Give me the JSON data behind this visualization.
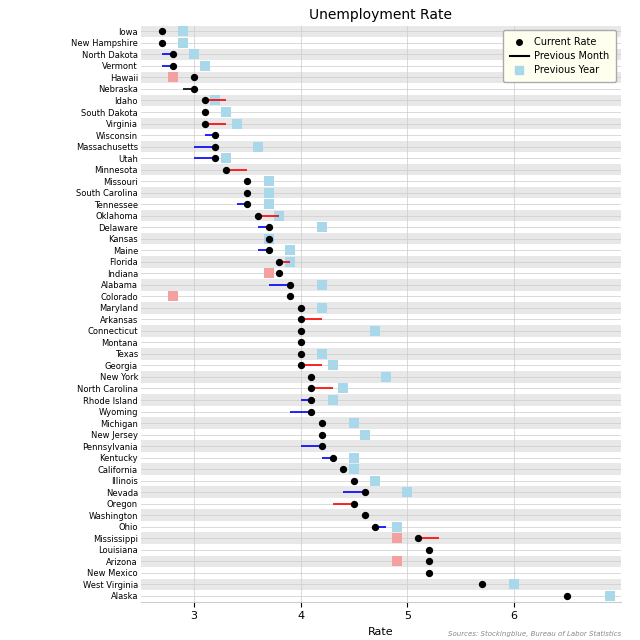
{
  "title": "Unemployment Rate",
  "xlabel": "Rate",
  "source": "Sources: Stockingblue, Bureau of Labor Statistics",
  "states": [
    "Iowa",
    "New Hampshire",
    "North Dakota",
    "Vermont",
    "Hawaii",
    "Nebraska",
    "Idaho",
    "South Dakota",
    "Virginia",
    "Wisconsin",
    "Massachusetts",
    "Utah",
    "Minnesota",
    "Missouri",
    "South Carolina",
    "Tennessee",
    "Oklahoma",
    "Delaware",
    "Kansas",
    "Maine",
    "Florida",
    "Indiana",
    "Alabama",
    "Colorado",
    "Maryland",
    "Arkansas",
    "Connecticut",
    "Montana",
    "Texas",
    "Georgia",
    "New York",
    "North Carolina",
    "Rhode Island",
    "Wyoming",
    "Michigan",
    "New Jersey",
    "Pennsylvania",
    "Kentucky",
    "California",
    "Illinois",
    "Nevada",
    "Oregon",
    "Washington",
    "Ohio",
    "Mississippi",
    "Louisiana",
    "Arizona",
    "New Mexico",
    "West Virginia",
    "Alaska"
  ],
  "current": [
    2.7,
    2.7,
    2.8,
    2.8,
    3.0,
    3.0,
    3.1,
    3.1,
    3.1,
    3.2,
    3.2,
    3.2,
    3.3,
    3.5,
    3.5,
    3.5,
    3.6,
    3.7,
    3.7,
    3.7,
    3.8,
    3.8,
    3.9,
    3.9,
    4.0,
    4.0,
    4.0,
    4.0,
    4.0,
    4.0,
    4.1,
    4.1,
    4.1,
    4.1,
    4.2,
    4.2,
    4.2,
    4.3,
    4.4,
    4.5,
    4.6,
    4.5,
    4.6,
    4.7,
    5.1,
    5.2,
    5.2,
    5.2,
    5.7,
    6.5
  ],
  "previous_month": [
    null,
    null,
    2.7,
    2.7,
    null,
    2.9,
    3.3,
    null,
    3.3,
    3.1,
    3.0,
    3.0,
    3.5,
    null,
    null,
    3.4,
    3.8,
    3.6,
    null,
    3.6,
    3.9,
    null,
    3.7,
    null,
    null,
    4.2,
    null,
    null,
    null,
    4.2,
    null,
    4.3,
    4.0,
    3.9,
    null,
    null,
    4.0,
    4.2,
    null,
    null,
    4.4,
    4.3,
    null,
    4.8,
    5.3,
    null,
    null,
    null,
    null,
    null
  ],
  "previous_month_color": [
    null,
    null,
    "blue",
    "blue",
    null,
    null,
    "red",
    null,
    "red",
    "blue",
    "blue",
    "blue",
    "red",
    null,
    null,
    "blue",
    "red",
    "blue",
    null,
    "blue",
    "red",
    null,
    "blue",
    null,
    null,
    "red",
    null,
    null,
    null,
    "red",
    null,
    "red",
    "blue",
    "blue",
    null,
    null,
    "blue",
    "blue",
    null,
    null,
    "blue",
    "red",
    null,
    "blue",
    "red",
    null,
    null,
    null,
    null,
    null
  ],
  "previous_year": [
    2.9,
    2.9,
    3.0,
    3.1,
    2.8,
    null,
    3.2,
    3.3,
    3.4,
    null,
    3.6,
    3.3,
    null,
    3.7,
    3.7,
    3.7,
    3.8,
    4.2,
    3.7,
    3.9,
    3.9,
    3.7,
    4.2,
    2.8,
    4.2,
    null,
    4.7,
    null,
    4.2,
    4.3,
    4.8,
    4.4,
    4.3,
    null,
    4.5,
    4.6,
    null,
    4.5,
    4.5,
    4.7,
    5.0,
    null,
    null,
    4.9,
    4.9,
    null,
    4.9,
    null,
    6.0,
    6.9
  ],
  "xlim": [
    2.5,
    7.0
  ],
  "xticks": [
    3,
    4,
    5,
    6
  ],
  "title_fontsize": 10,
  "label_fontsize": 6,
  "legend_fontsize": 7,
  "source_fontsize": 5,
  "dot_size": 18,
  "square_size": 45,
  "line_width": 1.2,
  "row_color_even": "#e8e8e8",
  "row_color_odd": "#ffffff",
  "grid_color": "#cccccc",
  "square_blue": "#a8d8ea",
  "square_pink": "#f5a0a0",
  "legend_facecolor": "#fffff0",
  "source_color": "#888888"
}
